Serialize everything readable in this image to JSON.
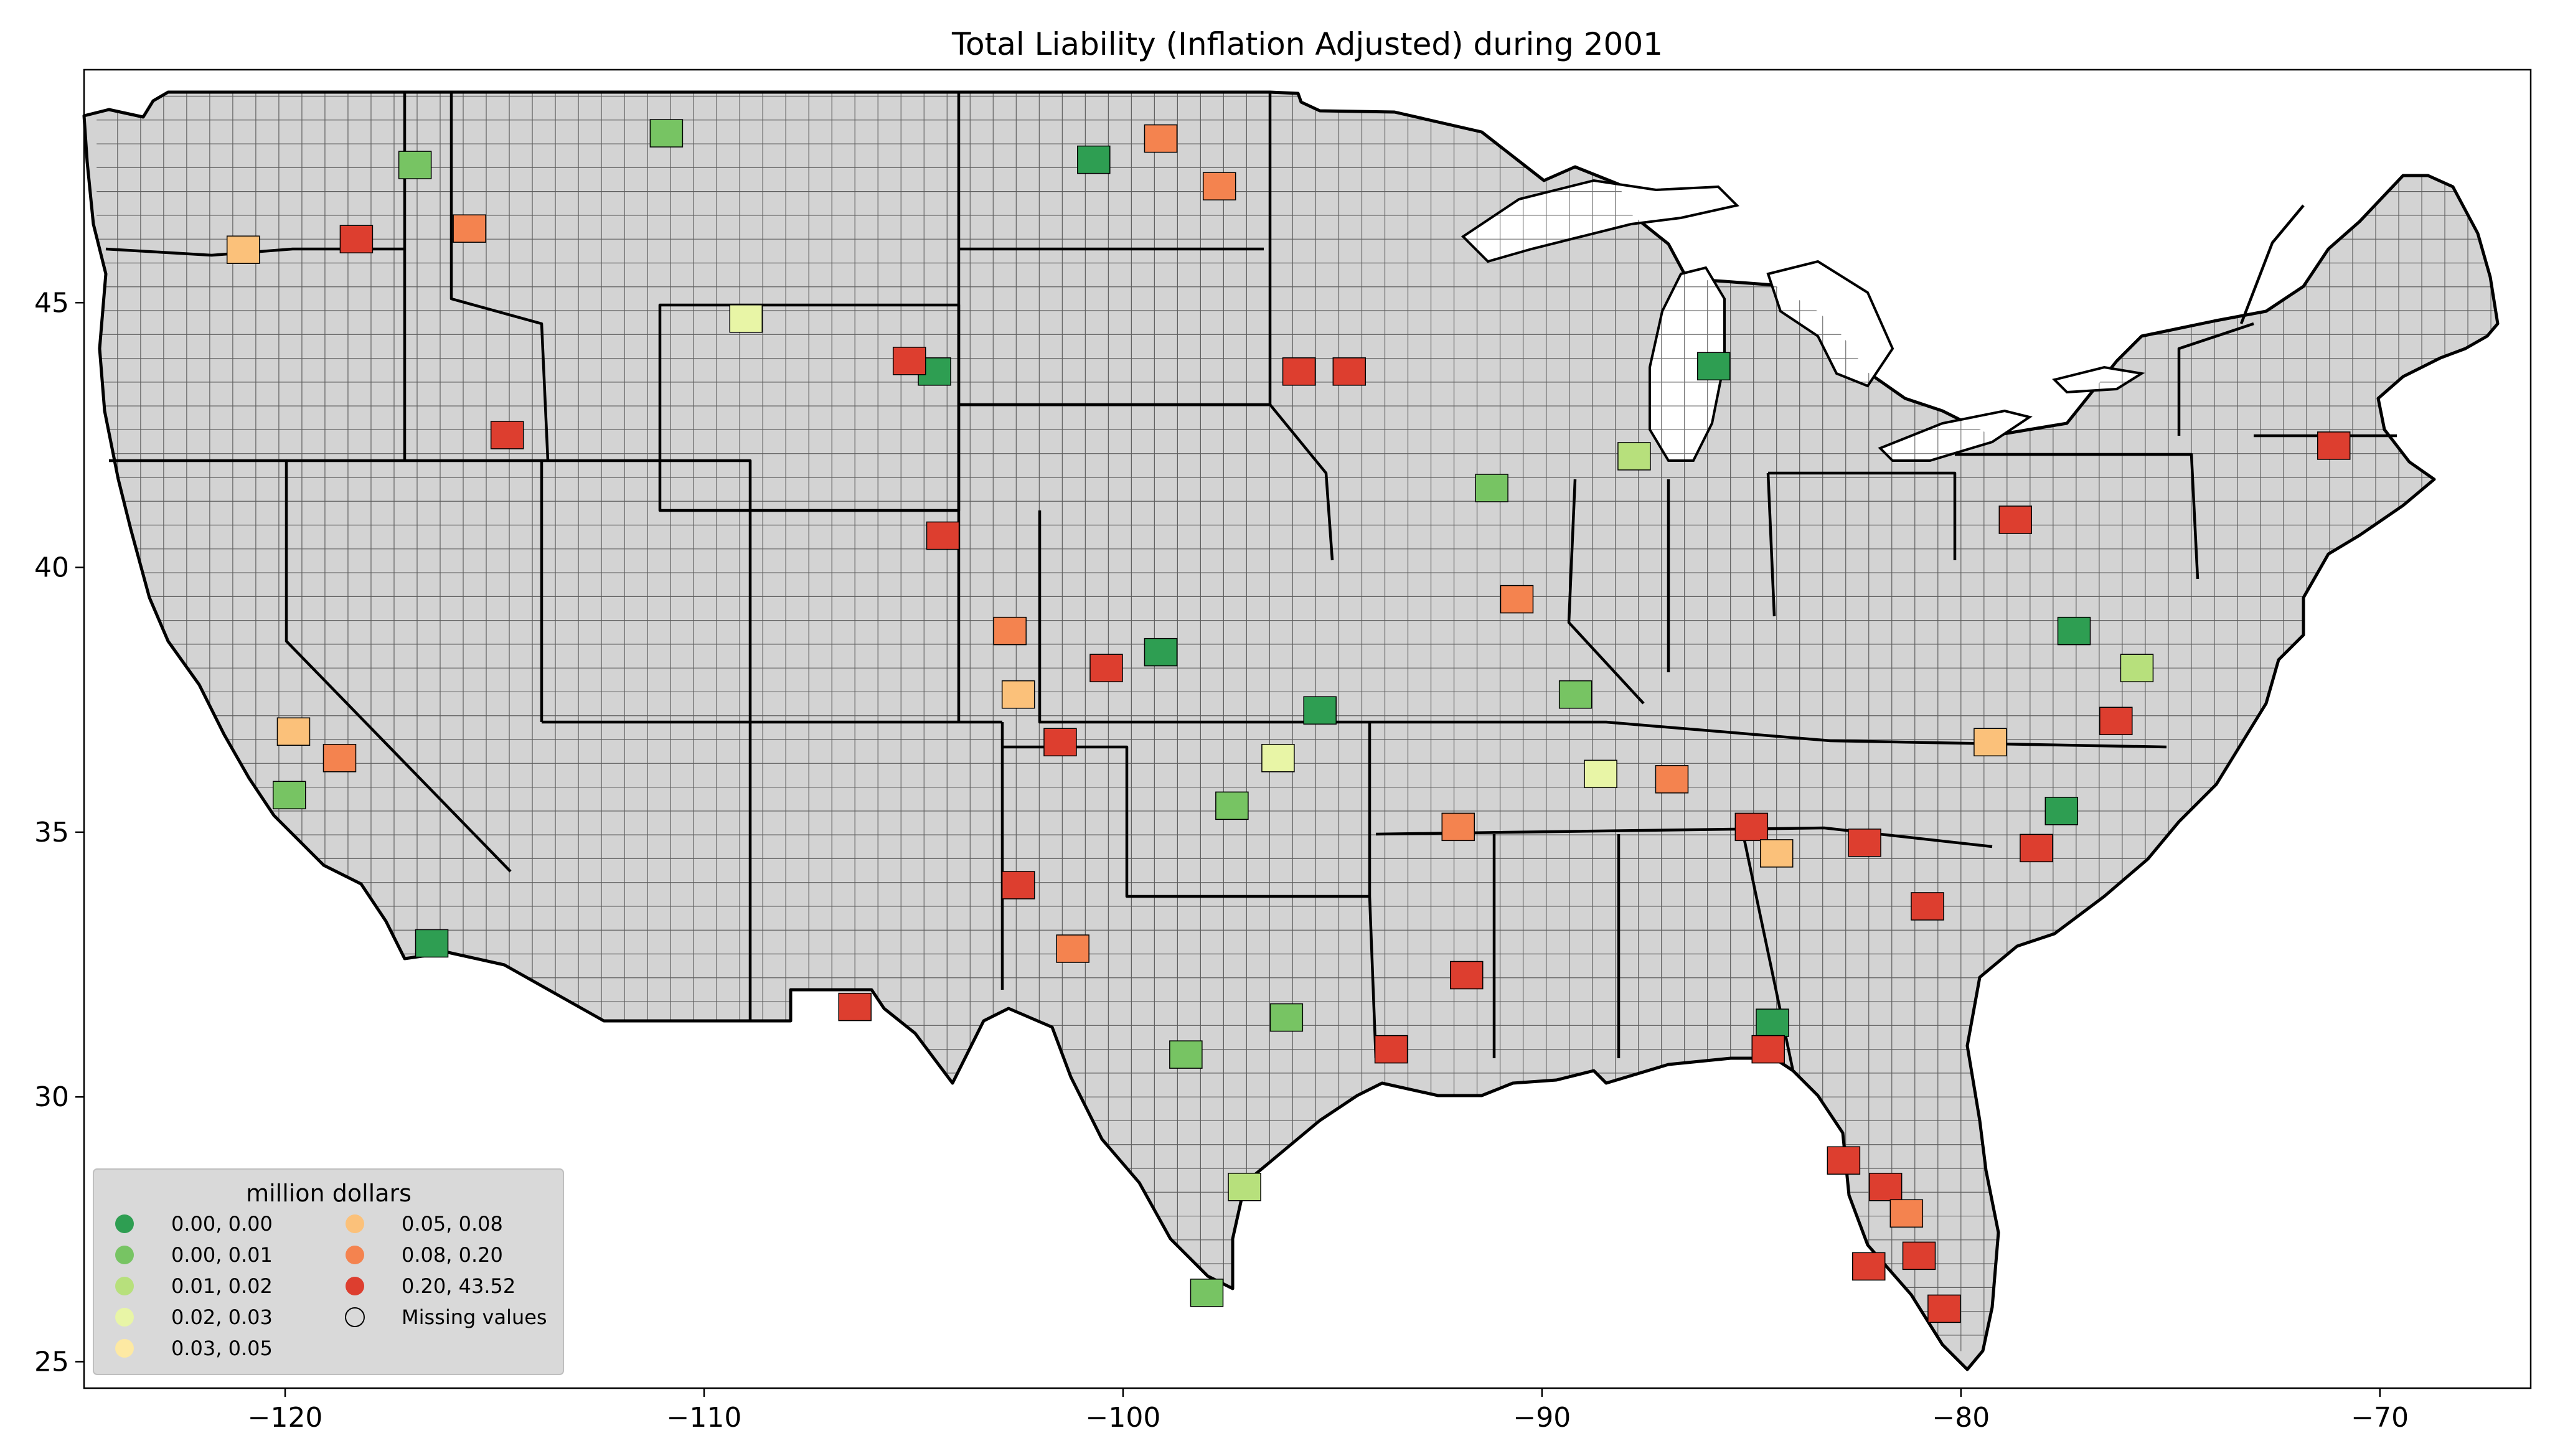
{
  "chart_data": {
    "type": "choropleth",
    "title": "Total Liability  (Inflation Adjusted) during 2001",
    "x_ticks": [
      "−120",
      "−110",
      "−100",
      "−90",
      "−80",
      "−70"
    ],
    "x_tick_values": [
      -120,
      -110,
      -100,
      -90,
      -80,
      -70
    ],
    "y_ticks": [
      "25",
      "30",
      "35",
      "40",
      "45"
    ],
    "y_tick_values": [
      25,
      30,
      35,
      40,
      45
    ],
    "xlim": [
      -124.8,
      -66.4
    ],
    "ylim": [
      24.5,
      49.4
    ],
    "background_color": "#d3d3d3",
    "legend": {
      "title": "million dollars",
      "placement": "lower-left",
      "entries": [
        {
          "label": "0.00,  0.00",
          "color": "#2e9e52"
        },
        {
          "label": "0.00,  0.01",
          "color": "#77c463"
        },
        {
          "label": "0.01,  0.02",
          "color": "#b7e07c"
        },
        {
          "label": "0.02,  0.03",
          "color": "#e8f5a6"
        },
        {
          "label": "0.03,  0.05",
          "color": "#fde9a3"
        },
        {
          "label": "0.05,  0.08",
          "color": "#fbc17a"
        },
        {
          "label": "0.08,  0.20",
          "color": "#f4834f"
        },
        {
          "label": "0.20, 43.52",
          "color": "#dd3e2f"
        },
        {
          "label": "Missing values",
          "color": "none"
        }
      ]
    },
    "highlighted_counties": [
      {
        "lon": -116.5,
        "lat": 32.9,
        "class": 0
      },
      {
        "lon": -118.7,
        "lat": 36.4,
        "class": 6
      },
      {
        "lon": -119.8,
        "lat": 36.9,
        "class": 5
      },
      {
        "lon": -119.9,
        "lat": 35.7,
        "class": 1
      },
      {
        "lon": -115.6,
        "lat": 46.4,
        "class": 6
      },
      {
        "lon": -118.3,
        "lat": 46.2,
        "class": 7
      },
      {
        "lon": -121.0,
        "lat": 46.0,
        "class": 5
      },
      {
        "lon": -114.7,
        "lat": 42.5,
        "class": 7
      },
      {
        "lon": -109.0,
        "lat": 44.7,
        "class": 3
      },
      {
        "lon": -110.9,
        "lat": 48.2,
        "class": 1
      },
      {
        "lon": -116.9,
        "lat": 47.6,
        "class": 1
      },
      {
        "lon": -104.5,
        "lat": 43.7,
        "class": 0
      },
      {
        "lon": -105.1,
        "lat": 43.9,
        "class": 7
      },
      {
        "lon": -104.3,
        "lat": 40.6,
        "class": 7
      },
      {
        "lon": -102.7,
        "lat": 38.8,
        "class": 6
      },
      {
        "lon": -102.5,
        "lat": 37.6,
        "class": 5
      },
      {
        "lon": -101.5,
        "lat": 36.7,
        "class": 7
      },
      {
        "lon": -102.5,
        "lat": 34.0,
        "class": 7
      },
      {
        "lon": -101.2,
        "lat": 32.8,
        "class": 6
      },
      {
        "lon": -100.4,
        "lat": 38.1,
        "class": 7
      },
      {
        "lon": -99.1,
        "lat": 38.4,
        "class": 0
      },
      {
        "lon": -95.8,
        "lat": 43.7,
        "class": 7
      },
      {
        "lon": -94.6,
        "lat": 43.7,
        "class": 7
      },
      {
        "lon": -97.7,
        "lat": 47.2,
        "class": 6
      },
      {
        "lon": -99.1,
        "lat": 48.1,
        "class": 6
      },
      {
        "lon": -100.7,
        "lat": 47.7,
        "class": 0
      },
      {
        "lon": -91.2,
        "lat": 41.5,
        "class": 1
      },
      {
        "lon": -90.6,
        "lat": 39.4,
        "class": 6
      },
      {
        "lon": -89.2,
        "lat": 37.6,
        "class": 1
      },
      {
        "lon": -87.8,
        "lat": 42.1,
        "class": 2
      },
      {
        "lon": -85.9,
        "lat": 43.8,
        "class": 0
      },
      {
        "lon": -86.9,
        "lat": 36.0,
        "class": 6
      },
      {
        "lon": -85.0,
        "lat": 35.1,
        "class": 7
      },
      {
        "lon": -84.4,
        "lat": 34.6,
        "class": 5
      },
      {
        "lon": -79.3,
        "lat": 36.7,
        "class": 5
      },
      {
        "lon": -77.6,
        "lat": 35.4,
        "class": 0
      },
      {
        "lon": -78.2,
        "lat": 34.7,
        "class": 7
      },
      {
        "lon": -80.8,
        "lat": 33.6,
        "class": 7
      },
      {
        "lon": -82.3,
        "lat": 34.8,
        "class": 7
      },
      {
        "lon": -75.8,
        "lat": 38.1,
        "class": 2
      },
      {
        "lon": -76.3,
        "lat": 37.1,
        "class": 7
      },
      {
        "lon": -71.1,
        "lat": 42.3,
        "class": 7
      },
      {
        "lon": -78.7,
        "lat": 40.9,
        "class": 7
      },
      {
        "lon": -77.3,
        "lat": 38.8,
        "class": 0
      },
      {
        "lon": -84.5,
        "lat": 31.4,
        "class": 0
      },
      {
        "lon": -84.6,
        "lat": 30.9,
        "class": 7
      },
      {
        "lon": -82.8,
        "lat": 28.8,
        "class": 7
      },
      {
        "lon": -81.8,
        "lat": 28.3,
        "class": 7
      },
      {
        "lon": -81.0,
        "lat": 27.0,
        "class": 7
      },
      {
        "lon": -80.4,
        "lat": 26.0,
        "class": 7
      },
      {
        "lon": -81.3,
        "lat": 27.8,
        "class": 6
      },
      {
        "lon": -82.2,
        "lat": 26.8,
        "class": 7
      },
      {
        "lon": -98.0,
        "lat": 26.3,
        "class": 1
      },
      {
        "lon": -97.1,
        "lat": 28.3,
        "class": 2
      },
      {
        "lon": -96.1,
        "lat": 31.5,
        "class": 1
      },
      {
        "lon": -98.5,
        "lat": 30.8,
        "class": 1
      },
      {
        "lon": -95.3,
        "lat": 37.3,
        "class": 0
      },
      {
        "lon": -96.3,
        "lat": 36.4,
        "class": 3
      },
      {
        "lon": -97.4,
        "lat": 35.5,
        "class": 1
      },
      {
        "lon": -106.4,
        "lat": 31.7,
        "class": 7
      },
      {
        "lon": -92.0,
        "lat": 35.1,
        "class": 6
      },
      {
        "lon": -91.8,
        "lat": 32.3,
        "class": 7
      },
      {
        "lon": -93.6,
        "lat": 30.9,
        "class": 7
      },
      {
        "lon": -88.6,
        "lat": 36.1,
        "class": 3
      }
    ]
  }
}
